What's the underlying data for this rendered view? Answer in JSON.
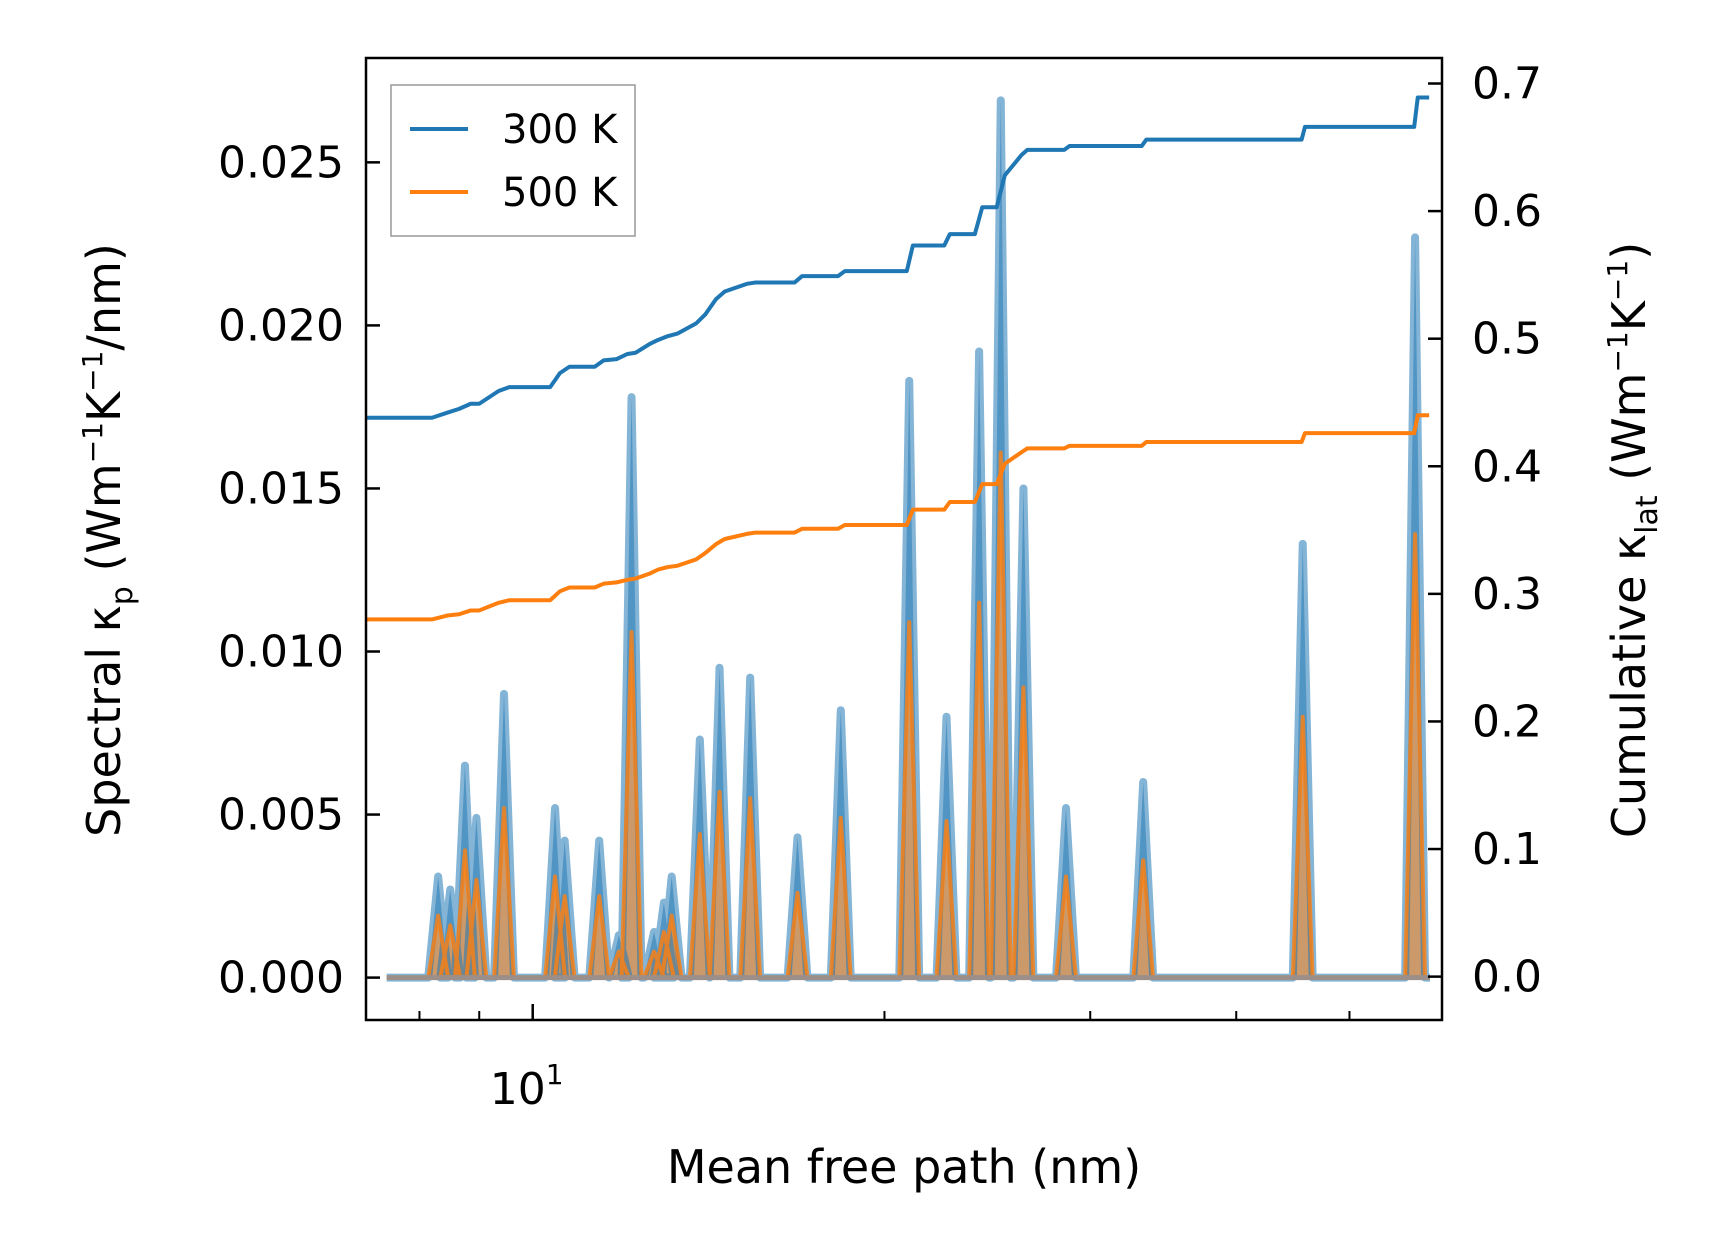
{
  "chart_data": {
    "type": "line",
    "x_scale": "log",
    "xlabel": "Mean free path (nm)",
    "ylabel_left": {
      "prefix": "Spectral κ",
      "sub": "p",
      "unit": " (Wm",
      "sup1": "−1",
      "mid": "K",
      "sup2": "−1",
      "end": "/nm)"
    },
    "ylabel_right": {
      "prefix": "Cumulative κ",
      "sub": "lat",
      "unit": " (Wm",
      "sup1": "−1",
      "mid": "K",
      "sup2": "−1",
      "end": ")"
    },
    "xlim": [
      7.2,
      60
    ],
    "ylim_left": [
      -0.0013,
      0.0282
    ],
    "ylim_right": [
      -0.034,
      0.72
    ],
    "x_ticks_major": [
      {
        "value": 10,
        "base": "10",
        "exp": "1"
      }
    ],
    "x_ticks_minor": [
      8,
      9,
      20,
      30,
      40,
      50,
      60
    ],
    "y_ticks_left": [
      "0.000",
      "0.005",
      "0.010",
      "0.015",
      "0.020",
      "0.025"
    ],
    "y_ticks_left_values": [
      0,
      0.005,
      0.01,
      0.015,
      0.02,
      0.025
    ],
    "y_ticks_right": [
      "0.0",
      "0.1",
      "0.2",
      "0.3",
      "0.4",
      "0.5",
      "0.6",
      "0.7"
    ],
    "y_ticks_right_values": [
      0,
      0.1,
      0.2,
      0.3,
      0.4,
      0.5,
      0.6,
      0.7
    ],
    "legend": {
      "position": "top-left",
      "entries": [
        {
          "label": "300 K",
          "color": "#1f77b4"
        },
        {
          "label": "500 K",
          "color": "#ff7f0e"
        }
      ]
    },
    "spectral_peaks": {
      "x": [
        8.3,
        8.5,
        8.75,
        8.95,
        9.45,
        10.45,
        10.65,
        11.4,
        11.85,
        12.15,
        12.7,
        12.95,
        13.15,
        13.9,
        14.45,
        15.35,
        16.85,
        18.35,
        21.0,
        22.6,
        24.1,
        25.15,
        26.3,
        28.6,
        33.3,
        45.6,
        56.9
      ],
      "values_300K": [
        0.0031,
        0.0027,
        0.0065,
        0.0049,
        0.0087,
        0.0052,
        0.0042,
        0.0042,
        0.0013,
        0.0178,
        0.0014,
        0.0023,
        0.0031,
        0.0073,
        0.0095,
        0.0092,
        0.0043,
        0.0082,
        0.0183,
        0.008,
        0.0192,
        0.0269,
        0.015,
        0.0052,
        0.006,
        0.0133,
        0.0227
      ],
      "values_500K": [
        0.0019,
        0.0016,
        0.0039,
        0.003,
        0.0052,
        0.0031,
        0.0025,
        0.0025,
        0.0008,
        0.0106,
        0.0008,
        0.0014,
        0.0019,
        0.0044,
        0.0057,
        0.0055,
        0.0026,
        0.0049,
        0.0109,
        0.0048,
        0.0115,
        0.0161,
        0.0089,
        0.0031,
        0.0036,
        0.008,
        0.0136
      ],
      "peak_half_width_decades": 0.0085
    },
    "series": [
      {
        "name": "300 K",
        "color": "#1f77b4",
        "axis": "right",
        "x": [
          7.2,
          8.2,
          8.45,
          8.65,
          8.85,
          9.0,
          9.35,
          9.55,
          10.35,
          10.55,
          10.75,
          11.3,
          11.5,
          11.8,
          12.05,
          12.25,
          12.6,
          12.8,
          13.05,
          13.3,
          13.8,
          14.05,
          14.35,
          14.6,
          15.25,
          15.5,
          16.75,
          17.0,
          18.25,
          18.5,
          20.9,
          21.15,
          22.5,
          22.75,
          23.9,
          24.25,
          24.95,
          25.35,
          26.2,
          26.5,
          28.5,
          28.8,
          33.2,
          33.5,
          45.5,
          45.8,
          56.8,
          57.2,
          58.5
        ],
        "y": [
          0.438,
          0.438,
          0.442,
          0.445,
          0.449,
          0.449,
          0.459,
          0.462,
          0.462,
          0.473,
          0.478,
          0.478,
          0.483,
          0.484,
          0.488,
          0.489,
          0.496,
          0.499,
          0.502,
          0.504,
          0.512,
          0.519,
          0.531,
          0.537,
          0.543,
          0.544,
          0.544,
          0.549,
          0.549,
          0.553,
          0.553,
          0.573,
          0.573,
          0.582,
          0.582,
          0.603,
          0.603,
          0.628,
          0.644,
          0.648,
          0.648,
          0.651,
          0.651,
          0.656,
          0.656,
          0.666,
          0.666,
          0.689,
          0.689
        ]
      },
      {
        "name": "500 K",
        "color": "#ff7f0e",
        "axis": "right",
        "x": [
          7.2,
          8.2,
          8.45,
          8.65,
          8.85,
          9.0,
          9.35,
          9.55,
          10.35,
          10.55,
          10.75,
          11.3,
          11.5,
          11.8,
          12.05,
          12.25,
          12.6,
          12.8,
          13.05,
          13.3,
          13.8,
          14.05,
          14.35,
          14.6,
          15.25,
          15.5,
          16.75,
          17.0,
          18.25,
          18.5,
          20.9,
          21.15,
          22.5,
          22.75,
          23.9,
          24.25,
          24.95,
          25.35,
          26.2,
          26.5,
          28.5,
          28.8,
          33.2,
          33.5,
          45.5,
          45.8,
          56.8,
          57.2,
          58.5
        ],
        "y": [
          0.28,
          0.28,
          0.283,
          0.284,
          0.287,
          0.287,
          0.293,
          0.295,
          0.295,
          0.302,
          0.305,
          0.305,
          0.308,
          0.309,
          0.311,
          0.312,
          0.316,
          0.319,
          0.321,
          0.322,
          0.327,
          0.332,
          0.339,
          0.343,
          0.347,
          0.348,
          0.348,
          0.351,
          0.351,
          0.354,
          0.354,
          0.366,
          0.366,
          0.372,
          0.372,
          0.386,
          0.386,
          0.402,
          0.411,
          0.414,
          0.414,
          0.416,
          0.416,
          0.419,
          0.419,
          0.426,
          0.426,
          0.44,
          0.44
        ]
      }
    ]
  }
}
